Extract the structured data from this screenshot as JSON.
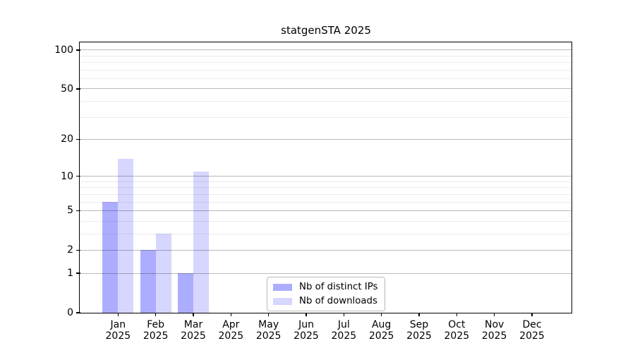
{
  "chart_data": {
    "type": "bar",
    "title": "statgenSTA 2025",
    "categories": [
      "Jan",
      "Feb",
      "Mar",
      "Apr",
      "May",
      "Jun",
      "Jul",
      "Aug",
      "Sep",
      "Oct",
      "Nov",
      "Dec"
    ],
    "category_year": "2025",
    "series": [
      {
        "name": "Nb of distinct IPs",
        "color": "#9999ff",
        "alpha": 0.8,
        "values": [
          6,
          2,
          1,
          0,
          0,
          0,
          0,
          0,
          0,
          0,
          0,
          0
        ]
      },
      {
        "name": "Nb of downloads",
        "color": "#ccccff",
        "alpha": 0.8,
        "values": [
          14,
          3,
          11,
          0,
          0,
          0,
          0,
          0,
          0,
          0,
          0,
          0
        ]
      }
    ],
    "yscale": "log1p",
    "ylim": [
      0,
      113
    ],
    "xlabel": "",
    "ylabel": "",
    "yticks": [
      0,
      1,
      2,
      5,
      10,
      20,
      50,
      100
    ],
    "yticks_minor": [
      3,
      4,
      6,
      7,
      8,
      9,
      30,
      40,
      60,
      70,
      80,
      90
    ],
    "grid": {
      "major_on": true,
      "minor_on": true
    },
    "legend": {
      "position": "lower-center",
      "border_color": "#b9b9b9"
    }
  },
  "colors": {
    "axis": "#000000",
    "grid_major": "#b8b8b8",
    "grid_minor": "#ebebeb",
    "background": "#ffffff"
  }
}
